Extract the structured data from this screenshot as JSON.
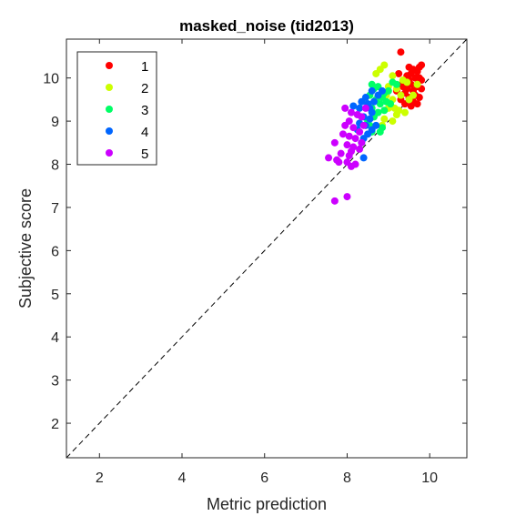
{
  "chart_data": {
    "type": "scatter",
    "title": "masked_noise (tid2013)",
    "xlabel": "Metric prediction",
    "ylabel": "Subjective score",
    "xlim": [
      1.2,
      10.9
    ],
    "ylim": [
      1.2,
      10.9
    ],
    "xticks": [
      2,
      4,
      6,
      8,
      10
    ],
    "yticks": [
      2,
      3,
      4,
      5,
      6,
      7,
      8,
      9,
      10
    ],
    "grid": false,
    "legend_position": "top-left",
    "reference_line": "y = x (dashed)",
    "series": [
      {
        "name": "1",
        "color": "#ff0000",
        "points": [
          [
            9.3,
            10.6
          ],
          [
            9.8,
            10.3
          ],
          [
            9.75,
            10.25
          ],
          [
            9.6,
            10.2
          ],
          [
            9.7,
            10.15
          ],
          [
            9.55,
            10.1
          ],
          [
            9.25,
            10.1
          ],
          [
            9.45,
            10.05
          ],
          [
            9.65,
            10.0
          ],
          [
            9.75,
            10.0
          ],
          [
            9.8,
            9.95
          ],
          [
            9.5,
            9.95
          ],
          [
            9.35,
            9.9
          ],
          [
            9.55,
            9.85
          ],
          [
            9.7,
            9.8
          ],
          [
            9.8,
            9.75
          ],
          [
            9.45,
            9.75
          ],
          [
            9.6,
            9.7
          ],
          [
            9.4,
            9.65
          ],
          [
            9.65,
            9.6
          ],
          [
            9.75,
            9.55
          ],
          [
            9.5,
            9.55
          ],
          [
            9.3,
            9.5
          ],
          [
            9.6,
            9.45
          ],
          [
            9.7,
            9.4
          ],
          [
            9.4,
            9.4
          ],
          [
            9.55,
            9.35
          ],
          [
            9.5,
            10.25
          ],
          [
            9.35,
            9.8
          ],
          [
            9.2,
            9.7
          ]
        ]
      },
      {
        "name": "2",
        "color": "#ccff00",
        "points": [
          [
            8.9,
            10.3
          ],
          [
            8.8,
            10.2
          ],
          [
            8.7,
            10.1
          ],
          [
            9.1,
            10.05
          ],
          [
            9.35,
            9.95
          ],
          [
            9.45,
            9.9
          ],
          [
            9.7,
            9.85
          ],
          [
            9.2,
            9.75
          ],
          [
            9.3,
            9.6
          ],
          [
            9.5,
            9.5
          ],
          [
            9.1,
            9.5
          ],
          [
            9.15,
            9.3
          ],
          [
            9.0,
            9.3
          ],
          [
            9.2,
            9.15
          ],
          [
            8.9,
            9.05
          ],
          [
            9.1,
            9.0
          ],
          [
            8.85,
            8.9
          ],
          [
            9.6,
            9.6
          ],
          [
            9.4,
            9.2
          ],
          [
            9.0,
            9.8
          ],
          [
            8.95,
            9.6
          ],
          [
            9.25,
            9.25
          ]
        ]
      },
      {
        "name": "3",
        "color": "#00ff66",
        "points": [
          [
            8.6,
            9.85
          ],
          [
            8.65,
            9.75
          ],
          [
            8.75,
            9.8
          ],
          [
            8.9,
            9.65
          ],
          [
            9.0,
            9.7
          ],
          [
            8.55,
            9.6
          ],
          [
            8.7,
            9.5
          ],
          [
            8.85,
            9.55
          ],
          [
            8.8,
            9.4
          ],
          [
            9.05,
            9.4
          ],
          [
            8.6,
            9.3
          ],
          [
            8.75,
            9.2
          ],
          [
            8.9,
            9.25
          ],
          [
            8.65,
            9.1
          ],
          [
            8.5,
            9.0
          ],
          [
            8.55,
            8.9
          ],
          [
            8.8,
            8.75
          ],
          [
            8.85,
            8.85
          ],
          [
            9.1,
            9.9
          ],
          [
            9.2,
            9.85
          ],
          [
            8.5,
            9.4
          ],
          [
            8.6,
            8.75
          ],
          [
            8.95,
            9.45
          ]
        ]
      },
      {
        "name": "4",
        "color": "#0066ff",
        "points": [
          [
            8.15,
            9.35
          ],
          [
            8.3,
            9.3
          ],
          [
            8.35,
            9.45
          ],
          [
            8.45,
            9.55
          ],
          [
            8.5,
            9.4
          ],
          [
            8.55,
            9.3
          ],
          [
            8.65,
            9.45
          ],
          [
            8.75,
            9.6
          ],
          [
            8.6,
            9.2
          ],
          [
            8.4,
            9.1
          ],
          [
            8.3,
            8.95
          ],
          [
            8.55,
            9.05
          ],
          [
            8.45,
            8.9
          ],
          [
            8.6,
            8.8
          ],
          [
            8.5,
            8.7
          ],
          [
            8.4,
            8.6
          ],
          [
            8.35,
            8.5
          ],
          [
            8.7,
            8.9
          ],
          [
            8.85,
            9.7
          ],
          [
            8.4,
            8.15
          ],
          [
            8.25,
            8.8
          ],
          [
            8.6,
            9.7
          ]
        ]
      },
      {
        "name": "5",
        "color": "#cc00ff",
        "points": [
          [
            7.95,
            9.3
          ],
          [
            8.1,
            9.2
          ],
          [
            8.25,
            9.15
          ],
          [
            8.35,
            9.1
          ],
          [
            8.45,
            9.3
          ],
          [
            8.05,
            9.0
          ],
          [
            7.95,
            8.9
          ],
          [
            8.15,
            8.85
          ],
          [
            8.3,
            8.75
          ],
          [
            7.9,
            8.7
          ],
          [
            8.05,
            8.65
          ],
          [
            8.2,
            8.6
          ],
          [
            8.35,
            8.5
          ],
          [
            8.0,
            8.45
          ],
          [
            8.15,
            8.4
          ],
          [
            8.3,
            8.35
          ],
          [
            7.85,
            8.25
          ],
          [
            8.05,
            8.2
          ],
          [
            7.75,
            8.1
          ],
          [
            7.55,
            8.15
          ],
          [
            7.8,
            8.05
          ],
          [
            8.0,
            8.05
          ],
          [
            8.2,
            8.0
          ],
          [
            7.7,
            8.5
          ],
          [
            8.1,
            8.3
          ],
          [
            8.1,
            7.95
          ],
          [
            7.7,
            7.15
          ],
          [
            8.0,
            7.25
          ],
          [
            8.4,
            8.9
          ]
        ]
      }
    ]
  }
}
